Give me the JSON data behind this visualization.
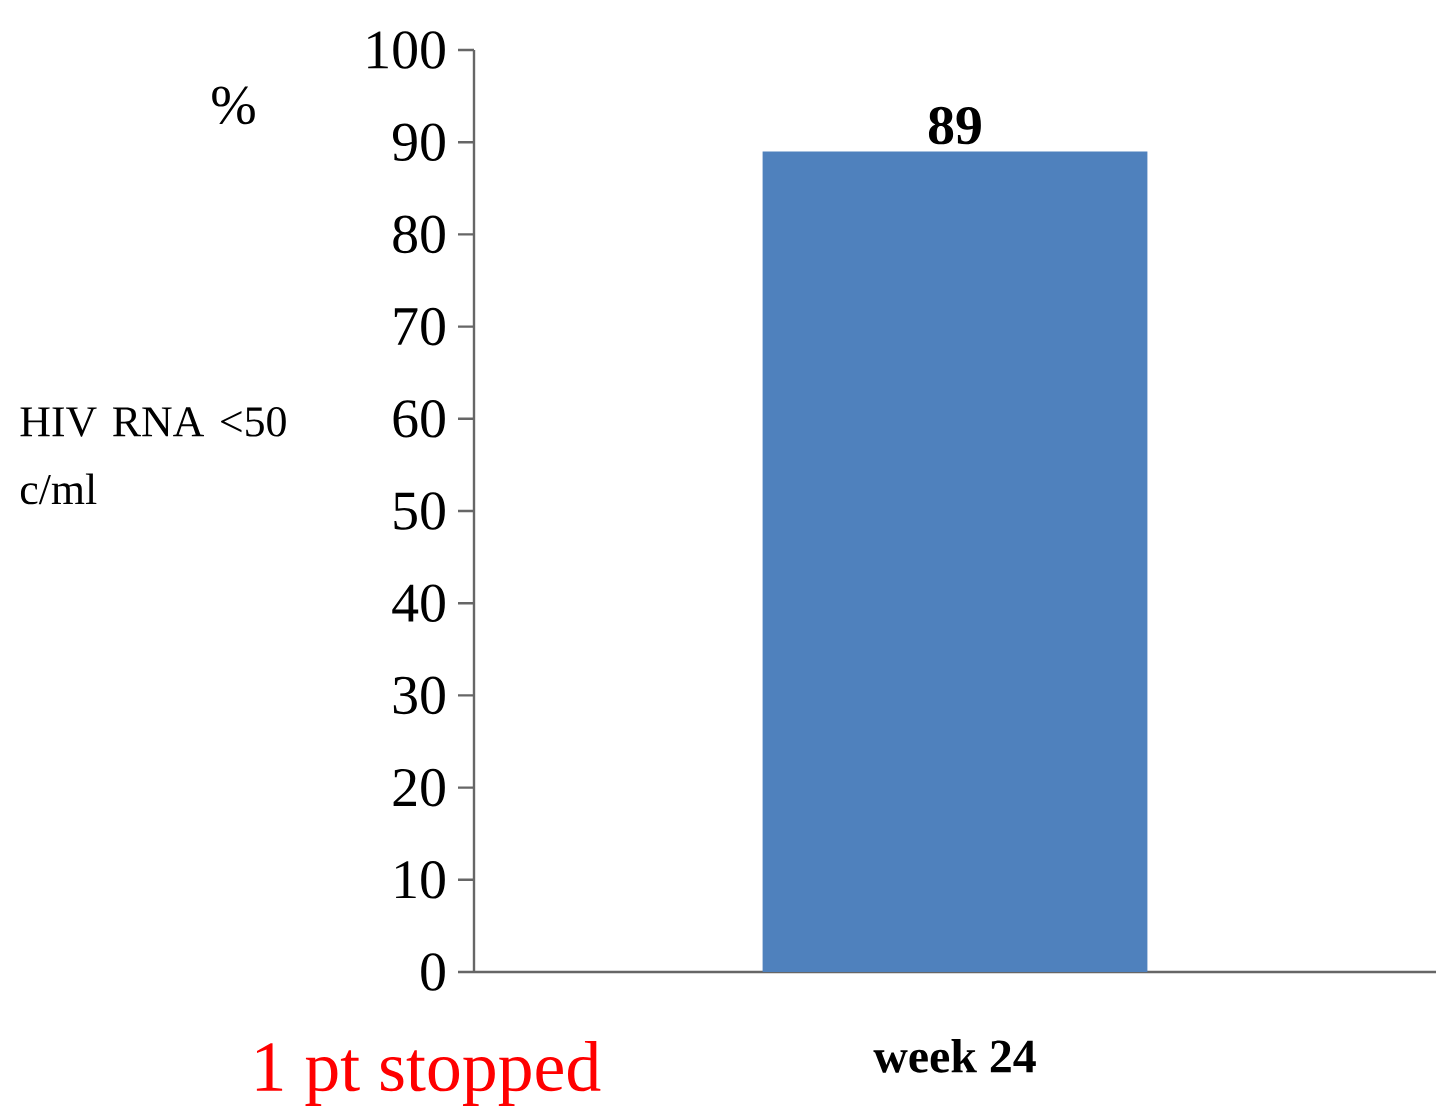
{
  "chart_data": {
    "type": "bar",
    "ylabel": "HIV RNA <50 c/ml",
    "annotations": [
      "%",
      "1 pt stopped"
    ],
    "categories": [
      "week 24"
    ],
    "values": [
      89
    ],
    "color": "#4f81bd",
    "ylim": [
      0,
      100
    ],
    "yticks": [
      0,
      10,
      20,
      30,
      40,
      50,
      60,
      70,
      80,
      90,
      100
    ],
    "data_labels": true
  }
}
